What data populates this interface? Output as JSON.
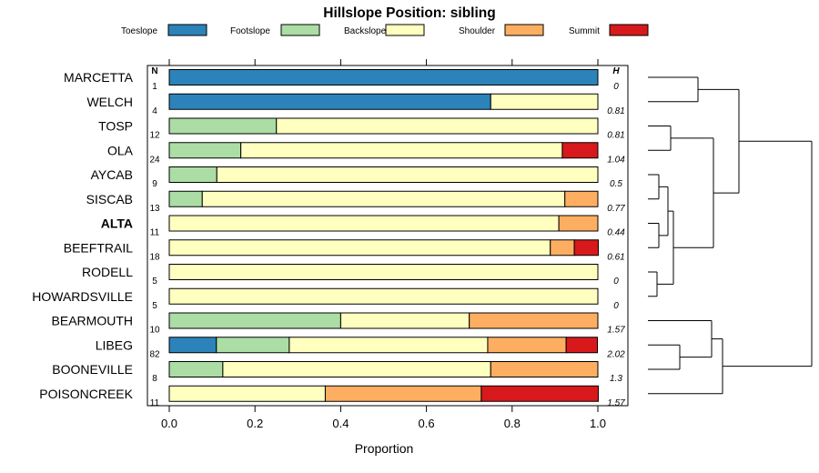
{
  "chart_data": {
    "type": "bar",
    "stacked": true,
    "orientation": "horizontal",
    "title": "Hillslope Position: sibling",
    "xlabel": "Proportion",
    "ylabel": "",
    "xlim": [
      0,
      1
    ],
    "x_ticks": [
      "0.0",
      "0.2",
      "0.4",
      "0.6",
      "0.8",
      "1.0"
    ],
    "n_header": "N",
    "h_header": "H",
    "legend_position": "top",
    "highlighted_category": "ALTA",
    "series": [
      {
        "name": "Toeslope",
        "color": "#2B83BA"
      },
      {
        "name": "Footslope",
        "color": "#ABDDA4"
      },
      {
        "name": "Backslope",
        "color": "#FFFFBF"
      },
      {
        "name": "Shoulder",
        "color": "#FDAE61"
      },
      {
        "name": "Summit",
        "color": "#D7191C"
      }
    ],
    "categories": [
      "MARCETTA",
      "WELCH",
      "TOSP",
      "OLA",
      "AYCAB",
      "SISCAB",
      "ALTA",
      "BEEFTRAIL",
      "RODELL",
      "HOWARDSVILLE",
      "BEARMOUTH",
      "LIBEG",
      "BOONEVILLE",
      "POISONCREEK"
    ],
    "n": [
      "1",
      "4",
      "12",
      "24",
      "9",
      "13",
      "11",
      "18",
      "5",
      "5",
      "10",
      "82",
      "8",
      "11"
    ],
    "h": [
      "0",
      "0.81",
      "0.81",
      "1.04",
      "0.5",
      "0.77",
      "0.44",
      "0.61",
      "0",
      "0",
      "1.57",
      "2.02",
      "1.3",
      "1.57"
    ],
    "values": [
      [
        1.0,
        0.0,
        0.0,
        0.0,
        0.0
      ],
      [
        0.75,
        0.0,
        0.25,
        0.0,
        0.0
      ],
      [
        0.0,
        0.25,
        0.75,
        0.0,
        0.0
      ],
      [
        0.0,
        0.167,
        0.75,
        0.0,
        0.083
      ],
      [
        0.0,
        0.111,
        0.889,
        0.0,
        0.0
      ],
      [
        0.0,
        0.077,
        0.846,
        0.077,
        0.0
      ],
      [
        0.0,
        0.0,
        0.909,
        0.091,
        0.0
      ],
      [
        0.0,
        0.0,
        0.889,
        0.056,
        0.056
      ],
      [
        0.0,
        0.0,
        1.0,
        0.0,
        0.0
      ],
      [
        0.0,
        0.0,
        1.0,
        0.0,
        0.0
      ],
      [
        0.0,
        0.4,
        0.3,
        0.3,
        0.0
      ],
      [
        0.11,
        0.17,
        0.463,
        0.183,
        0.073
      ],
      [
        0.0,
        0.125,
        0.625,
        0.25,
        0.0
      ],
      [
        0.0,
        0.0,
        0.364,
        0.364,
        0.273
      ]
    ],
    "dendrogram": {
      "note": "hierarchical clustering of rows (row indices), merge heights in relative units",
      "merges": [
        {
          "left": [
            0
          ],
          "right": [
            1
          ],
          "height": 0.55
        },
        {
          "left": [
            2
          ],
          "right": [
            3
          ],
          "height": 0.25
        },
        {
          "left": [
            4
          ],
          "right": [
            5
          ],
          "height": 0.12
        },
        {
          "left": [
            6
          ],
          "right": [
            7
          ],
          "height": 0.12
        },
        {
          "left": [
            4,
            5
          ],
          "right": [
            6,
            7
          ],
          "height": 0.22
        },
        {
          "left": [
            8
          ],
          "right": [
            9
          ],
          "height": 0.1
        },
        {
          "left": [
            4,
            5,
            6,
            7
          ],
          "right": [
            8,
            9
          ],
          "height": 0.28
        },
        {
          "left": [
            2,
            3
          ],
          "right": [
            4,
            5,
            6,
            7,
            8,
            9
          ],
          "height": 0.72
        },
        {
          "left": [
            0,
            1
          ],
          "right": [
            2,
            3,
            4,
            5,
            6,
            7,
            8,
            9
          ],
          "height": 1.0
        },
        {
          "left": [
            11
          ],
          "right": [
            12
          ],
          "height": 0.35
        },
        {
          "left": [
            10
          ],
          "right": [
            11,
            12
          ],
          "height": 0.7
        },
        {
          "left": [
            10,
            11,
            12
          ],
          "right": [
            13
          ],
          "height": 0.82
        },
        {
          "left": [
            0,
            1,
            2,
            3,
            4,
            5,
            6,
            7,
            8,
            9
          ],
          "right": [
            10,
            11,
            12,
            13
          ],
          "height": 1.8
        }
      ]
    }
  }
}
